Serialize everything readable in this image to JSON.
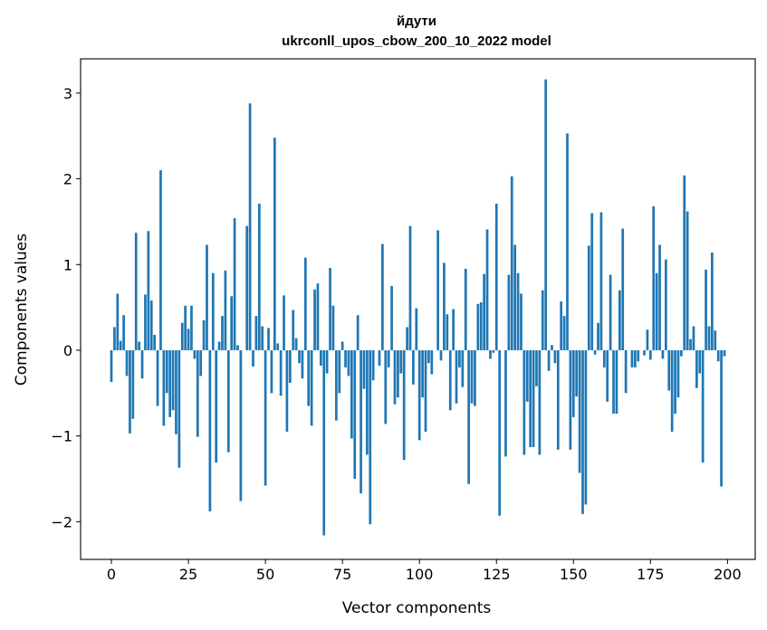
{
  "chart_data": {
    "type": "bar",
    "title_line1": "йдути",
    "title_line2": "ukrconll_upos_cbow_200_10_2022 model",
    "xlabel": "Vector components",
    "ylabel": "Components values",
    "xlim": [
      -10,
      209
    ],
    "ylim": [
      -2.44,
      3.4
    ],
    "xticks": [
      0,
      25,
      50,
      75,
      100,
      125,
      150,
      175,
      200
    ],
    "xtick_labels": [
      "0",
      "25",
      "50",
      "75",
      "100",
      "125",
      "150",
      "175",
      "200"
    ],
    "yticks": [
      -2,
      -1,
      0,
      1,
      2,
      3
    ],
    "ytick_labels": [
      "−2",
      "−1",
      "0",
      "1",
      "2",
      "3"
    ],
    "bar_color": "#1f77b4",
    "values": [
      -0.37,
      0.27,
      0.66,
      0.11,
      0.41,
      -0.3,
      -0.97,
      -0.8,
      1.37,
      0.1,
      -0.33,
      0.65,
      1.39,
      0.58,
      0.18,
      -0.65,
      2.1,
      -0.88,
      -0.5,
      -0.78,
      -0.7,
      -0.98,
      -1.37,
      0.32,
      0.52,
      0.25,
      0.52,
      -0.1,
      -1.01,
      -0.3,
      0.35,
      1.23,
      -1.88,
      0.9,
      -1.31,
      0.1,
      0.4,
      0.93,
      -1.19,
      0.63,
      1.54,
      0.06,
      -1.76,
      0.0,
      1.45,
      2.88,
      -0.19,
      0.4,
      1.71,
      0.28,
      -1.58,
      0.26,
      -0.5,
      2.48,
      0.08,
      -0.53,
      0.64,
      -0.95,
      -0.38,
      0.47,
      0.14,
      -0.15,
      -0.33,
      1.08,
      -0.65,
      -0.88,
      0.71,
      0.78,
      -0.18,
      -2.16,
      -0.27,
      0.96,
      0.52,
      -0.82,
      -0.5,
      0.1,
      -0.2,
      -0.3,
      -1.03,
      -1.5,
      0.41,
      -1.67,
      -0.45,
      -1.22,
      -2.03,
      -0.35,
      0.0,
      -0.18,
      1.24,
      -0.86,
      -0.2,
      0.75,
      -0.63,
      -0.55,
      -0.27,
      -1.28,
      0.27,
      1.45,
      -0.4,
      0.49,
      -1.05,
      -0.55,
      -0.95,
      -0.15,
      -0.28,
      0.0,
      1.4,
      -0.12,
      1.02,
      0.42,
      -0.7,
      0.48,
      -0.62,
      -0.2,
      -0.43,
      0.95,
      -1.56,
      -0.62,
      -0.65,
      0.54,
      0.56,
      0.89,
      1.41,
      -0.1,
      -0.03,
      1.71,
      -1.93,
      0.0,
      -1.24,
      0.88,
      2.03,
      1.23,
      0.9,
      0.66,
      -1.22,
      -0.6,
      -1.13,
      -1.13,
      -0.42,
      -1.22,
      0.7,
      3.16,
      -0.24,
      0.06,
      -0.15,
      -1.16,
      0.57,
      0.4,
      2.53,
      -1.16,
      -0.78,
      -0.54,
      -1.43,
      -1.91,
      -1.8,
      1.22,
      1.6,
      -0.05,
      0.32,
      1.61,
      -0.2,
      -0.6,
      0.88,
      -0.74,
      -0.74,
      0.7,
      1.42,
      -0.5,
      0.0,
      -0.2,
      -0.2,
      -0.13,
      0.0,
      -0.06,
      0.24,
      -0.11,
      1.68,
      0.9,
      1.23,
      -0.1,
      1.06,
      -0.47,
      -0.95,
      -0.74,
      -0.55,
      -0.07,
      2.04,
      1.62,
      0.13,
      0.28,
      -0.44,
      -0.27,
      -1.31,
      0.94,
      0.28,
      1.14,
      0.23,
      -0.13,
      -1.59,
      -0.07
    ]
  }
}
